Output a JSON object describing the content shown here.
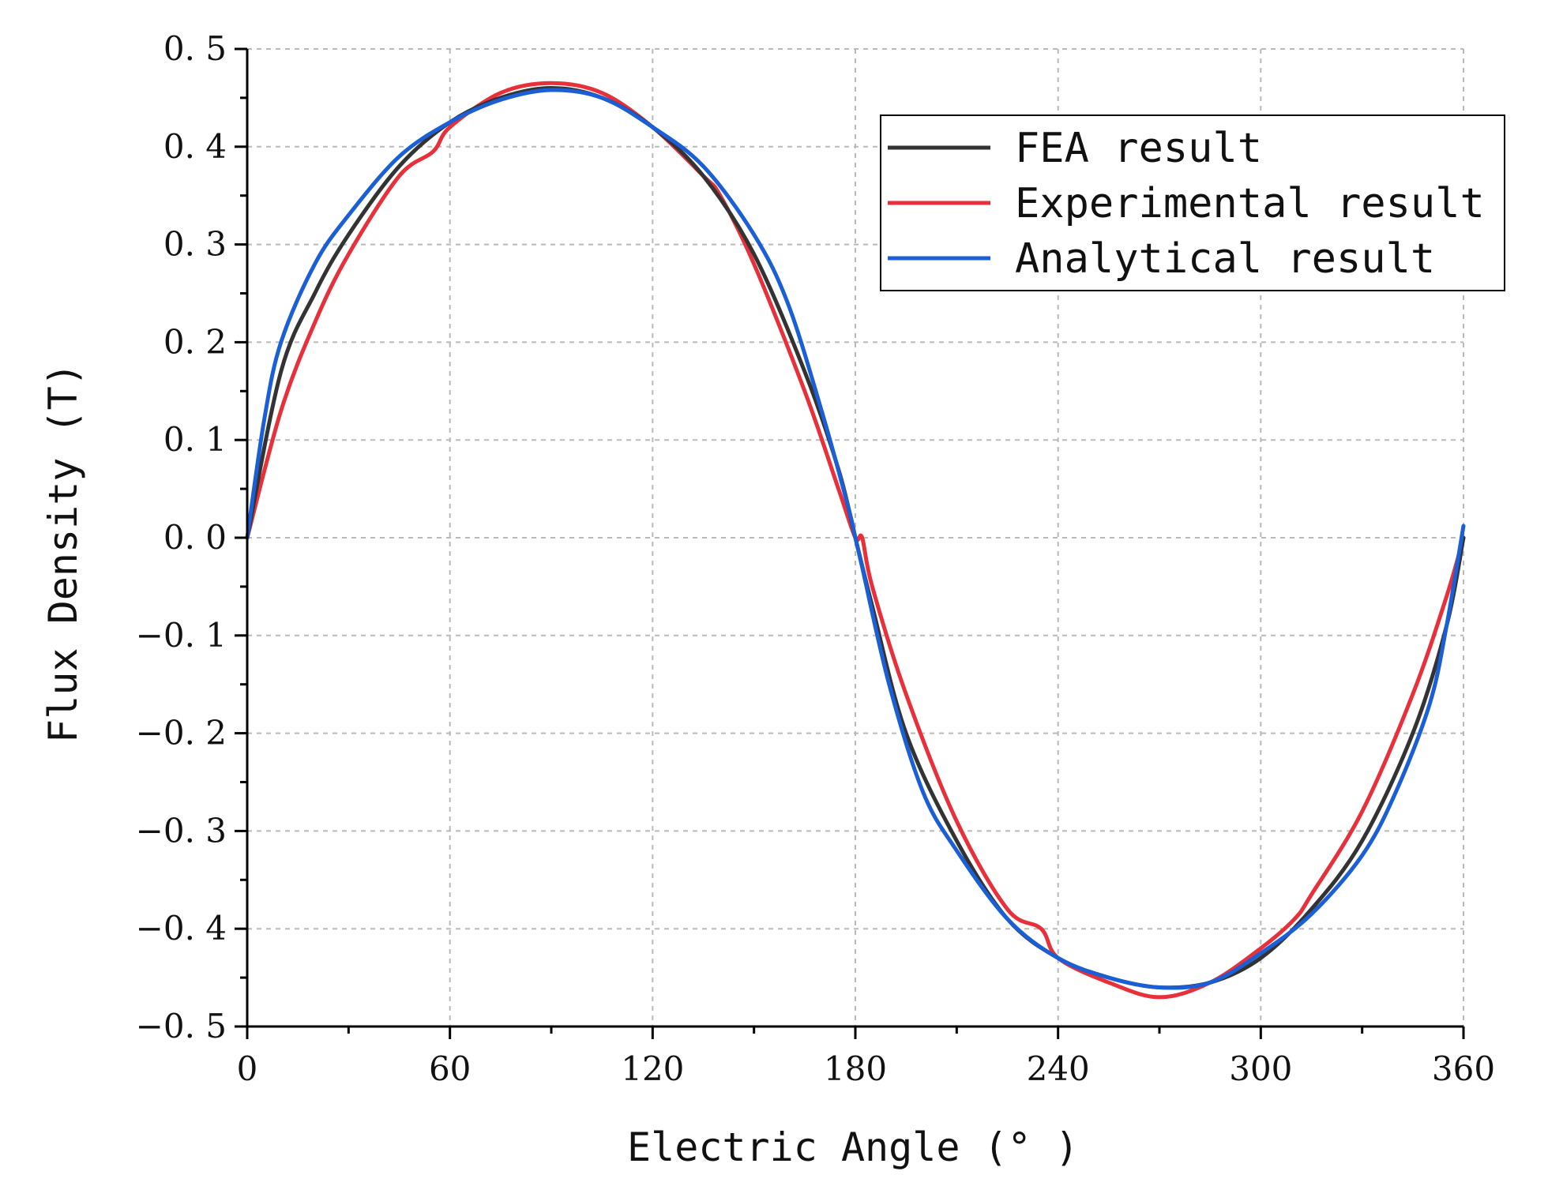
{
  "chart_data": {
    "type": "line",
    "title": "",
    "xlabel": "Electric Angle (° )",
    "ylabel": "Flux Density (T)",
    "xlim": [
      0,
      360
    ],
    "ylim": [
      -0.5,
      0.5
    ],
    "xticks": [
      0,
      60,
      120,
      180,
      240,
      300,
      360
    ],
    "xtick_labels": [
      "0",
      "60",
      "120",
      "180",
      "240",
      "300",
      "360"
    ],
    "yticks": [
      0.5,
      0.4,
      0.3,
      0.2,
      0.1,
      0.0,
      -0.1,
      -0.2,
      -0.3,
      -0.4,
      -0.5
    ],
    "ytick_labels": [
      "0. 5",
      "0. 4",
      "0. 3",
      "0. 2",
      "0. 1",
      "0. 0",
      "−0. 1",
      "−0. 2",
      "−0. 3",
      "−0. 4",
      "−0. 5"
    ],
    "grid": true,
    "legend_position": "top-right",
    "series": [
      {
        "name": "FEA result",
        "color": "#333333",
        "x": [
          0,
          10,
          20,
          30,
          45,
          60,
          75,
          90,
          105,
          120,
          135,
          150,
          165,
          175,
          180,
          185,
          195,
          210,
          225,
          240,
          255,
          270,
          285,
          300,
          315,
          330,
          345,
          355,
          360
        ],
        "y": [
          0.0,
          0.17,
          0.25,
          0.31,
          0.38,
          0.425,
          0.45,
          0.46,
          0.45,
          0.42,
          0.37,
          0.29,
          0.17,
          0.07,
          0.0,
          -0.07,
          -0.2,
          -0.31,
          -0.39,
          -0.43,
          -0.45,
          -0.46,
          -0.455,
          -0.43,
          -0.38,
          -0.31,
          -0.2,
          -0.09,
          0.0
        ]
      },
      {
        "name": "Experimental result",
        "color": "#e8303a",
        "x": [
          0,
          10,
          20,
          30,
          45,
          55,
          60,
          75,
          90,
          105,
          120,
          135,
          140,
          150,
          165,
          175,
          180,
          182,
          185,
          195,
          210,
          225,
          235,
          240,
          255,
          270,
          285,
          300,
          310,
          315,
          330,
          345,
          355,
          360
        ],
        "y": [
          0.0,
          0.13,
          0.22,
          0.29,
          0.37,
          0.395,
          0.42,
          0.455,
          0.465,
          0.455,
          0.42,
          0.37,
          0.35,
          0.28,
          0.15,
          0.05,
          0.0,
          0.0,
          -0.05,
          -0.16,
          -0.29,
          -0.38,
          -0.4,
          -0.43,
          -0.455,
          -0.47,
          -0.455,
          -0.42,
          -0.39,
          -0.365,
          -0.28,
          -0.16,
          -0.06,
          0.0
        ]
      },
      {
        "name": "Analytical result",
        "color": "#1a5fd6",
        "x": [
          0,
          5,
          10,
          20,
          30,
          45,
          60,
          75,
          90,
          105,
          120,
          135,
          150,
          160,
          170,
          178,
          180,
          182,
          190,
          200,
          210,
          225,
          240,
          255,
          270,
          285,
          300,
          315,
          330,
          340,
          350,
          355,
          360
        ],
        "y": [
          0.0,
          0.12,
          0.2,
          0.28,
          0.33,
          0.39,
          0.425,
          0.448,
          0.458,
          0.45,
          0.42,
          0.38,
          0.31,
          0.24,
          0.13,
          0.03,
          0.0,
          -0.03,
          -0.15,
          -0.26,
          -0.32,
          -0.39,
          -0.43,
          -0.45,
          -0.46,
          -0.455,
          -0.425,
          -0.385,
          -0.325,
          -0.26,
          -0.17,
          -0.09,
          0.012
        ]
      }
    ]
  }
}
